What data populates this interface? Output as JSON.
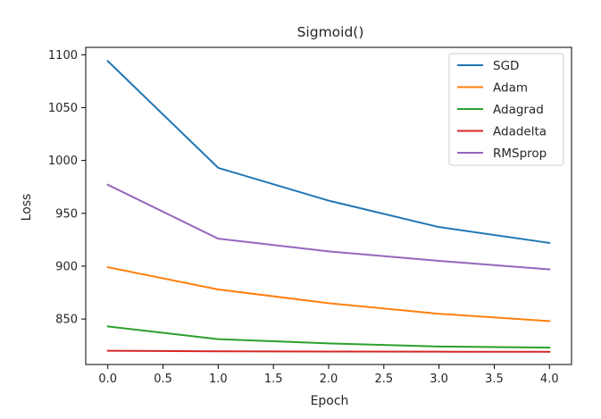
{
  "chart_data": {
    "type": "line",
    "title": "Sigmoid()",
    "xlabel": "Epoch",
    "ylabel": "Loss",
    "x": [
      0,
      1,
      2,
      3,
      4
    ],
    "xlim": [
      -0.2,
      4.2
    ],
    "ylim": [
      807,
      1107
    ],
    "xticks": [
      0.0,
      0.5,
      1.0,
      1.5,
      2.0,
      2.5,
      3.0,
      3.5,
      4.0
    ],
    "xtick_labels": [
      "0.0",
      "0.5",
      "1.0",
      "1.5",
      "2.0",
      "2.5",
      "3.0",
      "3.5",
      "4.0"
    ],
    "yticks": [
      850,
      900,
      950,
      1000,
      1050,
      1100
    ],
    "ytick_labels": [
      "850",
      "900",
      "950",
      "1000",
      "1050",
      "1100"
    ],
    "grid": false,
    "legend_position": "top-right",
    "series": [
      {
        "name": "SGD",
        "color": "#1f77b4",
        "values": [
          1094,
          993,
          962,
          937,
          922
        ]
      },
      {
        "name": "Adam",
        "color": "#ff7f0e",
        "values": [
          899,
          878,
          865,
          855,
          848
        ]
      },
      {
        "name": "Adagrad",
        "color": "#2ca02c",
        "values": [
          843,
          831,
          827,
          824,
          823
        ]
      },
      {
        "name": "Adadelta",
        "color": "#d62728",
        "values": [
          820,
          819.5,
          819.3,
          819.1,
          819
        ]
      },
      {
        "name": "RMSprop",
        "color": "#9467bd",
        "values": [
          977,
          926,
          914,
          905,
          897
        ]
      }
    ]
  }
}
